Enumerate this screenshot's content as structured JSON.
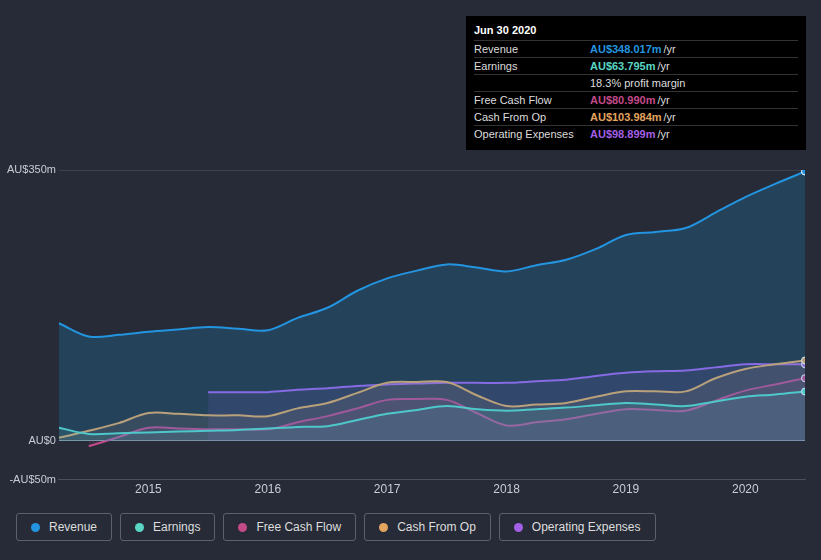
{
  "chart_data": {
    "type": "line",
    "x": [
      2014.25,
      2014.5,
      2014.75,
      2015,
      2015.25,
      2015.5,
      2015.75,
      2016,
      2016.25,
      2016.5,
      2016.75,
      2017,
      2017.25,
      2017.5,
      2017.75,
      2018,
      2018.25,
      2018.5,
      2018.75,
      2019,
      2019.25,
      2019.5,
      2019.75,
      2020,
      2020.25,
      2020.5
    ],
    "xlim": [
      2014.25,
      2020.5
    ],
    "xticks": [
      2015,
      2016,
      2017,
      2018,
      2019,
      2020
    ],
    "ylim": [
      -50,
      350
    ],
    "yticks": [
      {
        "value": -50,
        "label": "-AU$50m"
      },
      {
        "value": 0,
        "label": "AU$0"
      },
      {
        "value": 350,
        "label": "AU$350m"
      }
    ],
    "grid": true,
    "legend": "bottom",
    "series": [
      {
        "name": "Revenue",
        "color": "#2394df",
        "values": [
          152,
          135,
          137,
          141,
          144,
          147,
          145,
          143,
          159,
          172,
          194,
          210,
          220,
          228,
          224,
          219,
          227,
          234,
          248,
          266,
          270,
          275,
          295,
          315,
          332,
          348.017
        ]
      },
      {
        "name": "Earnings",
        "color": "#5ad6c4",
        "values": [
          17,
          9,
          10,
          11,
          12,
          13,
          14,
          16,
          18,
          19,
          27,
          35,
          40,
          45,
          41,
          39,
          41,
          43,
          46,
          49,
          47,
          45,
          51,
          57,
          60,
          63.795
        ]
      },
      {
        "name": "Free Cash Flow",
        "color": "#c24a89",
        "values": [
          null,
          -7,
          5,
          17,
          16,
          15,
          15,
          15,
          24,
          32,
          42,
          53,
          54,
          53,
          36,
          20,
          24,
          28,
          35,
          41,
          40,
          39,
          52,
          65,
          73,
          80.99
        ]
      },
      {
        "name": "Cash From Op",
        "color": "#e3a45f",
        "values": [
          4,
          13,
          23,
          36,
          35,
          33,
          33,
          32,
          42,
          49,
          62,
          75,
          76,
          76,
          59,
          45,
          47,
          49,
          57,
          64,
          64,
          64,
          81,
          93,
          99,
          103.984
        ]
      },
      {
        "name": "Operating Expenses",
        "color": "#a35fe6",
        "values": [
          null,
          null,
          null,
          null,
          null,
          63,
          63,
          63,
          66,
          68,
          71,
          73,
          74,
          75,
          75,
          75,
          77,
          79,
          84,
          88,
          90,
          91,
          95,
          99,
          99,
          98.899
        ]
      }
    ],
    "annotation": {
      "title": "Jun 30 2020",
      "rows": [
        {
          "label": "Revenue",
          "value": "AU$348.017m",
          "unit": "/yr"
        },
        {
          "label": "Earnings",
          "value": "AU$63.795m",
          "unit": "/yr"
        },
        {
          "note": "18.3% profit margin"
        },
        {
          "label": "Free Cash Flow",
          "value": "AU$80.990m",
          "unit": "/yr"
        },
        {
          "label": "Cash From Op",
          "value": "AU$103.984m",
          "unit": "/yr"
        },
        {
          "label": "Operating Expenses",
          "value": "AU$98.899m",
          "unit": "/yr"
        }
      ]
    }
  }
}
